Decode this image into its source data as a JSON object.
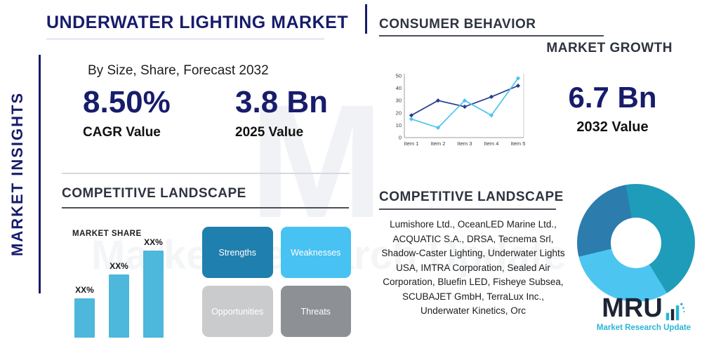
{
  "side_label": "MARKET INSIGHTS",
  "header": {
    "title": "UNDERWATER LIGHTING MARKET",
    "subtitle": "By Size, Share, Forecast 2032"
  },
  "stats": {
    "cagr": {
      "value": "8.50%",
      "label": "CAGR Value"
    },
    "y2025": {
      "value": "3.8 Bn",
      "label": "2025 Value"
    },
    "y2032": {
      "value": "6.7 Bn",
      "label": "2032 Value"
    }
  },
  "sections": {
    "consumer_behavior": "CONSUMER BEHAVIOR",
    "market_growth": "MARKET GROWTH",
    "competitive_landscape_left": "COMPETITIVE LANDSCAPE",
    "competitive_landscape_right": "COMPETITIVE LANDSCAPE"
  },
  "swot": {
    "strengths": "Strengths",
    "weaknesses": "Weaknesses",
    "opportunities": "Opportunities",
    "threats": "Threats"
  },
  "swot_colors": {
    "strengths": "#1f7fae",
    "weaknesses": "#47c2f2",
    "opportunities": "#c9cbcd",
    "threats": "#8d9094"
  },
  "companies": "Lumishore Ltd., OceanLED Marine Ltd., ACQUATIC S.A., DRSA, Tecnema Srl, Shadow-Caster Lighting, Underwater Lights USA, IMTRA Corporation, Sealed Air Corporation, Bluefin LED, Fisheye Subsea, SCUBAJET GmbH, TerraLux Inc., Underwater Kinetics, Orc",
  "logo": {
    "name": "MRU",
    "tagline": "Market Research Update"
  },
  "watermark": {
    "letter": "M",
    "text": "Market Research Update"
  },
  "colors": {
    "navy": "#171c6b",
    "heading": "#2e3340",
    "light_blue": "#4cc3ed",
    "teal": "#1e9cba"
  },
  "chart_data": [
    {
      "type": "line",
      "x": [
        "Item 1",
        "Item 2",
        "Item 3",
        "Item 4",
        "Item 5"
      ],
      "ylim": [
        0,
        50
      ],
      "yticks": [
        0,
        10,
        20,
        30,
        40,
        50
      ],
      "series": [
        {
          "name": "dark-blue-series",
          "color": "#243f8f",
          "values": [
            18,
            30,
            25,
            33,
            42
          ]
        },
        {
          "name": "light-blue-series",
          "color": "#4cc3ed",
          "values": [
            15,
            8,
            30,
            18,
            48
          ]
        }
      ],
      "legend": false,
      "grid": false
    },
    {
      "type": "bar",
      "title": "MARKET SHARE",
      "categories": [
        "XX%",
        "XX%",
        "XX%"
      ],
      "values": [
        28,
        45,
        62
      ],
      "ylim": [
        0,
        70
      ],
      "bar_color": "#4db7dc"
    },
    {
      "type": "pie",
      "donut": true,
      "rotation_deg": -10,
      "slices": [
        {
          "name": "segment-right",
          "value": 44,
          "color": "#1e9cba"
        },
        {
          "name": "segment-bottom-left",
          "value": 30,
          "color": "#4cc6f0"
        },
        {
          "name": "segment-top-left",
          "value": 26,
          "color": "#2c7cae"
        }
      ]
    }
  ]
}
